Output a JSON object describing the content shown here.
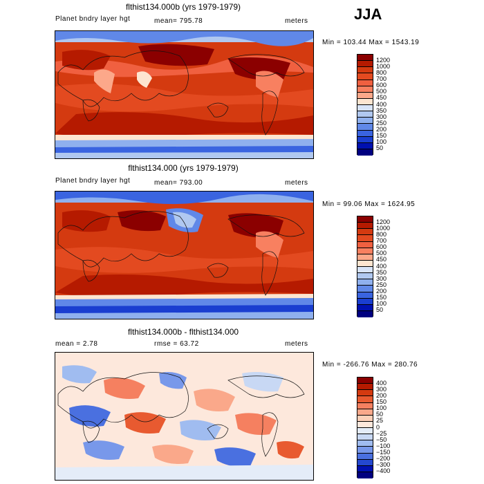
{
  "season": "JJA",
  "panels": [
    {
      "title": "flthist134.000b (yrs 1979-1979)",
      "left_label": "Planet bndry layer hgt",
      "mean_label": "mean= 795.78",
      "units": "meters",
      "minmax": "Min = 103.44 Max = 1543.19",
      "levels": [
        "1200",
        "1000",
        "800",
        "700",
        "600",
        "500",
        "450",
        "400",
        "350",
        "300",
        "250",
        "200",
        "150",
        "100",
        "50"
      ],
      "colors": [
        "#8b0000",
        "#b51a00",
        "#d43a10",
        "#e34a20",
        "#f06040",
        "#f88060",
        "#fca88a",
        "#fde5d0",
        "#d8e4f8",
        "#b0c8f0",
        "#8fb0ee",
        "#6088e8",
        "#3a64e0",
        "#1a3ed0",
        "#0010b0",
        "#000080"
      ]
    },
    {
      "title": "flthist134.000 (yrs 1979-1979)",
      "left_label": "Planet bndry layer hgt",
      "mean_label": "mean= 793.00",
      "units": "meters",
      "minmax": "Min = 99.06 Max = 1624.95",
      "levels": [
        "1200",
        "1000",
        "800",
        "700",
        "600",
        "500",
        "450",
        "400",
        "350",
        "300",
        "250",
        "200",
        "150",
        "100",
        "50"
      ],
      "colors": [
        "#8b0000",
        "#b51a00",
        "#d43a10",
        "#e34a20",
        "#f06040",
        "#f88060",
        "#fca88a",
        "#fde5d0",
        "#d8e4f8",
        "#b0c8f0",
        "#8fb0ee",
        "#6088e8",
        "#3a64e0",
        "#1a3ed0",
        "#0010b0",
        "#000080"
      ]
    },
    {
      "title": "flthist134.000b - flthist134.000",
      "left_label": "mean = 2.78",
      "mean_label": "rmse = 63.72",
      "units": "meters",
      "minmax": "Min = -266.76 Max = 280.76",
      "levels": [
        "400",
        "300",
        "200",
        "150",
        "100",
        "50",
        "25",
        "0",
        "−25",
        "−50",
        "−100",
        "−150",
        "−200",
        "−300",
        "−400"
      ],
      "colors": [
        "#8b0000",
        "#b51a00",
        "#d43a10",
        "#e85a30",
        "#f58060",
        "#faa88a",
        "#fcd0b8",
        "#fde8dc",
        "#e4ecf8",
        "#c8d8f4",
        "#a0bcf0",
        "#7898ea",
        "#4a70e0",
        "#2448d0",
        "#0010b0",
        "#000080"
      ]
    }
  ]
}
